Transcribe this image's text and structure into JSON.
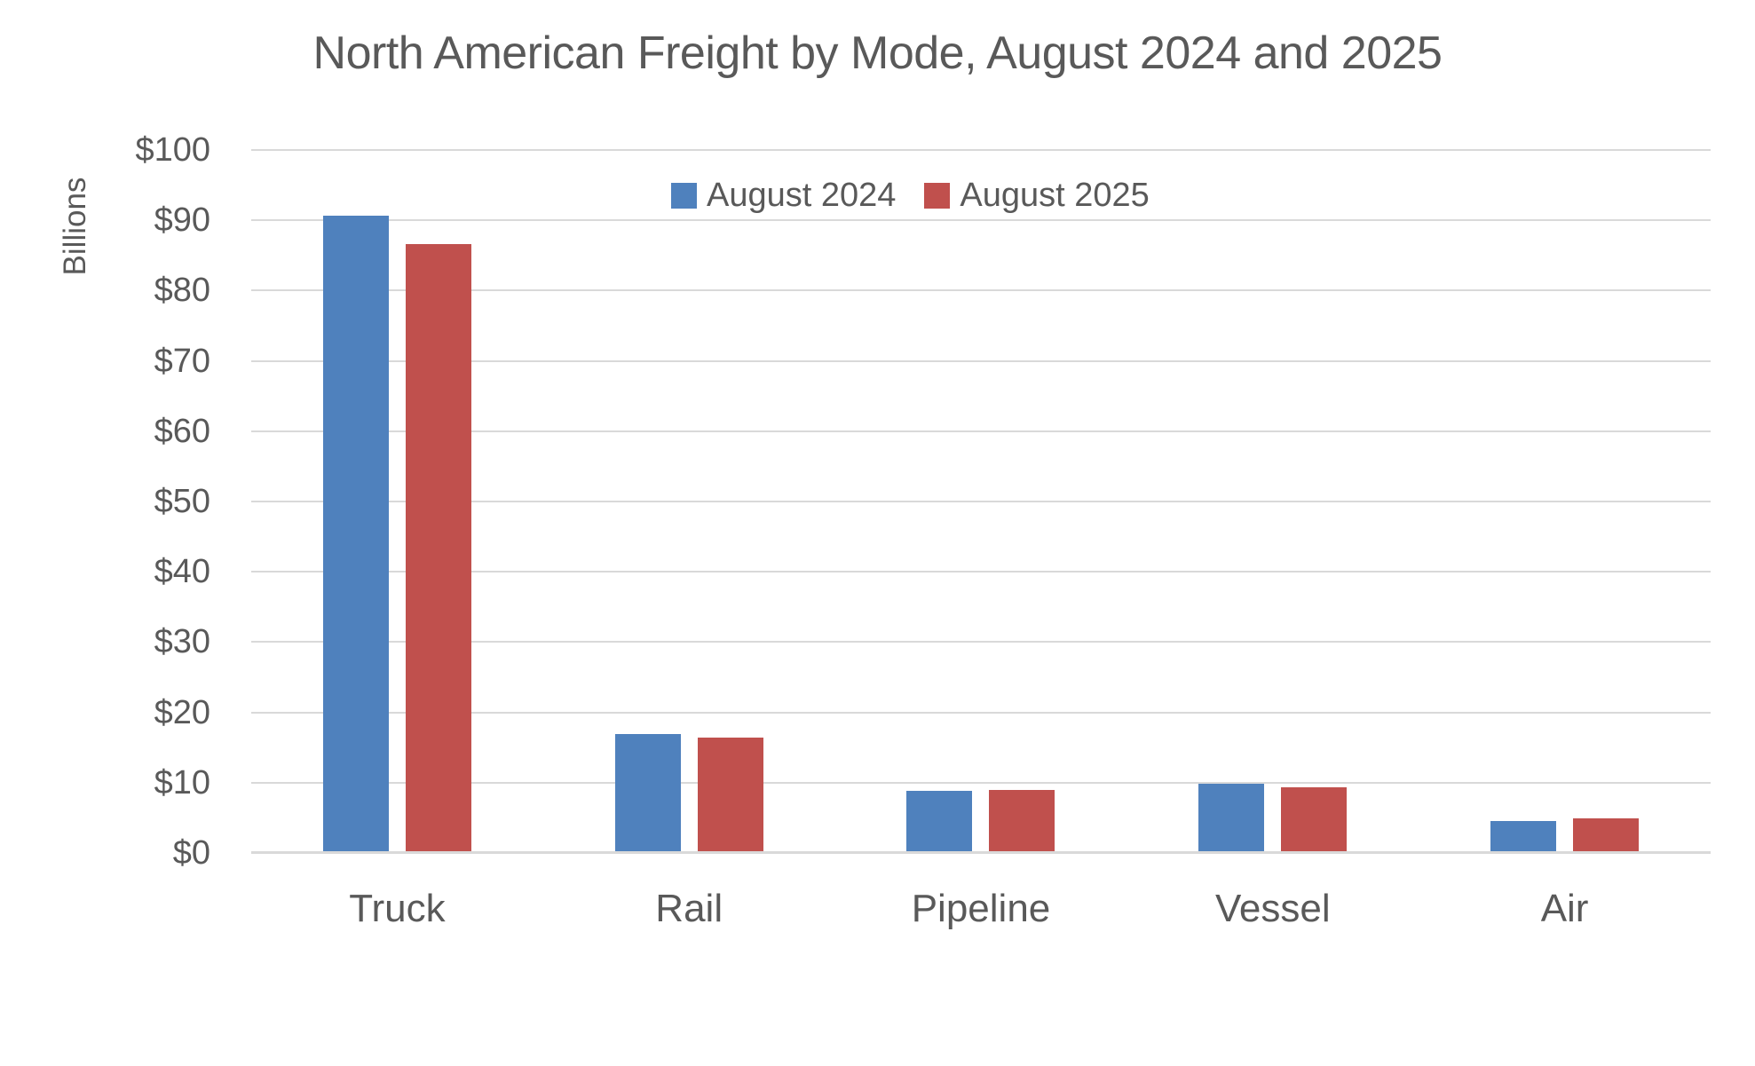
{
  "title": "North American Freight by Mode, August 2024 and 2025",
  "y_axis": {
    "label": "Billions",
    "tick_prefix": "$",
    "min": 0,
    "max": 100,
    "step": 10
  },
  "colors": {
    "series_blue": "#4F81BD",
    "series_red": "#C0504D",
    "text": "#595959",
    "gridline": "#D9D9D9"
  },
  "chart_data": {
    "type": "bar",
    "title": "North American Freight by Mode, August 2024 and 2025",
    "categories": [
      "Truck",
      "Rail",
      "Pipeline",
      "Vessel",
      "Air"
    ],
    "series": [
      {
        "name": "August 2024",
        "color": "#4F81BD",
        "values": [
          90.7,
          16.9,
          8.8,
          9.9,
          4.6
        ]
      },
      {
        "name": "August 2025",
        "color": "#C0504D",
        "values": [
          86.6,
          16.4,
          9.0,
          9.3,
          4.9
        ]
      }
    ],
    "xlabel": "",
    "ylabel": "Billions",
    "ylim": [
      0,
      100
    ],
    "ytick_step": 10,
    "ytick_labels": [
      "$0",
      "$10",
      "$20",
      "$30",
      "$40",
      "$50",
      "$60",
      "$70",
      "$80",
      "$90",
      "$100"
    ],
    "grid": true,
    "legend_position": "top-center-inside"
  }
}
